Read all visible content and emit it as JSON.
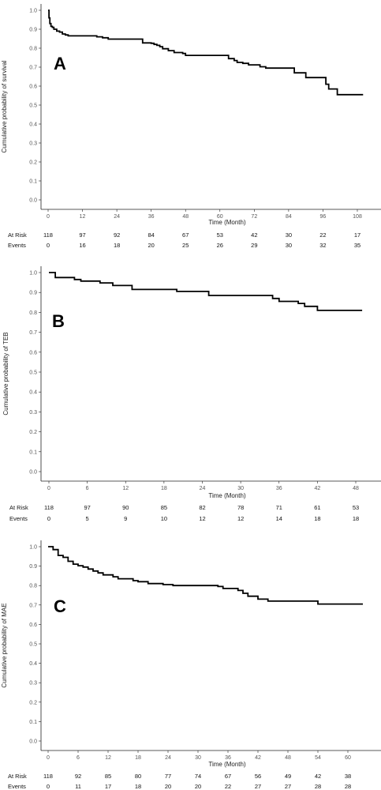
{
  "chart_data": [
    {
      "type": "line",
      "panel_label": "A",
      "xlabel": "Time (Month)",
      "ylabel": "Cumulative probability of survival",
      "xlim": [
        0,
        108
      ],
      "ylim": [
        0,
        1
      ],
      "xticks": [
        0,
        12,
        24,
        36,
        48,
        60,
        72,
        84,
        96,
        108
      ],
      "yticks": [
        "0.0",
        "0.1",
        "0.2",
        "0.3",
        "0.4",
        "0.5",
        "0.6",
        "0.7",
        "0.8",
        "0.9",
        "1.0"
      ],
      "series": [
        {
          "x": [
            0,
            0.3,
            0.6,
            1,
            1.5,
            2,
            3,
            4,
            5,
            6,
            7,
            17,
            19,
            21,
            33,
            36,
            37,
            38,
            39,
            40,
            42,
            44,
            47,
            48,
            50,
            57,
            59,
            61,
            63,
            65,
            66,
            68,
            70,
            72,
            74,
            76,
            78,
            80,
            86,
            90,
            97,
            98,
            99,
            101
          ],
          "y": [
            1.0,
            0.96,
            0.93,
            0.915,
            0.91,
            0.9,
            0.89,
            0.885,
            0.875,
            0.87,
            0.865,
            0.86,
            0.855,
            0.848,
            0.828,
            0.826,
            0.82,
            0.815,
            0.808,
            0.797,
            0.787,
            0.777,
            0.772,
            0.762,
            0.762,
            0.762,
            0.762,
            0.762,
            0.745,
            0.735,
            0.725,
            0.72,
            0.712,
            0.712,
            0.702,
            0.695,
            0.695,
            0.695,
            0.67,
            0.645,
            0.61,
            0.585,
            0.585,
            0.555
          ],
          "x_end": 110
        }
      ],
      "risk_table": {
        "rows": [
          {
            "label": "At Risk",
            "values": [
              "118",
              "97",
              "92",
              "84",
              "67",
              "53",
              "42",
              "30",
              "22",
              "17"
            ]
          },
          {
            "label": "Events",
            "values": [
              "0",
              "16",
              "18",
              "20",
              "25",
              "26",
              "29",
              "30",
              "32",
              "35"
            ]
          }
        ]
      }
    },
    {
      "type": "line",
      "panel_label": "B",
      "xlabel": "Time (Month)",
      "ylabel": "Cumulative probability of TEB",
      "xlim": [
        0,
        48
      ],
      "ylim": [
        0,
        1
      ],
      "xticks": [
        0,
        6,
        12,
        18,
        24,
        30,
        36,
        42,
        48
      ],
      "yticks": [
        "0.0",
        "0.1",
        "0.2",
        "0.3",
        "0.4",
        "0.5",
        "0.6",
        "0.7",
        "0.8",
        "0.9",
        "1.0"
      ],
      "series": [
        {
          "x": [
            0,
            1,
            4,
            5,
            8,
            10,
            13,
            20,
            25,
            35,
            36,
            39,
            40,
            42
          ],
          "y": [
            1.0,
            0.975,
            0.965,
            0.957,
            0.948,
            0.935,
            0.915,
            0.905,
            0.885,
            0.87,
            0.855,
            0.845,
            0.83,
            0.81
          ],
          "x_end": 49
        }
      ],
      "risk_table": {
        "rows": [
          {
            "label": "At Risk",
            "values": [
              "118",
              "97",
              "90",
              "85",
              "82",
              "78",
              "71",
              "61",
              "53"
            ]
          },
          {
            "label": "Events",
            "values": [
              "0",
              "5",
              "9",
              "10",
              "12",
              "12",
              "14",
              "18",
              "18"
            ]
          }
        ]
      }
    },
    {
      "type": "line",
      "panel_label": "C",
      "xlabel": "Time (Month)",
      "ylabel": "Cumulative probability of MAE",
      "xlim": [
        0,
        60
      ],
      "ylim": [
        0,
        1
      ],
      "xticks": [
        0,
        6,
        12,
        18,
        24,
        30,
        36,
        42,
        48,
        54,
        60
      ],
      "yticks": [
        "0.0",
        "0.1",
        "0.2",
        "0.3",
        "0.4",
        "0.5",
        "0.6",
        "0.7",
        "0.8",
        "0.9",
        "1.0"
      ],
      "series": [
        {
          "x": [
            0,
            1,
            2,
            3,
            4,
            5,
            6,
            7,
            8,
            9,
            10,
            11,
            13,
            14,
            17,
            18,
            20,
            23,
            25,
            34,
            35,
            38,
            39,
            40,
            42,
            44,
            54
          ],
          "y": [
            1.0,
            0.985,
            0.955,
            0.945,
            0.925,
            0.91,
            0.902,
            0.895,
            0.885,
            0.875,
            0.865,
            0.855,
            0.845,
            0.835,
            0.825,
            0.82,
            0.81,
            0.805,
            0.8,
            0.795,
            0.785,
            0.775,
            0.76,
            0.745,
            0.73,
            0.72,
            0.705
          ],
          "x_end": 63
        }
      ],
      "risk_table": {
        "rows": [
          {
            "label": "At Risk",
            "values": [
              "118",
              "92",
              "85",
              "80",
              "77",
              "74",
              "67",
              "56",
              "49",
              "42",
              "38"
            ]
          },
          {
            "label": "Events",
            "values": [
              "0",
              "11",
              "17",
              "18",
              "20",
              "20",
              "22",
              "27",
              "27",
              "28",
              "28"
            ]
          }
        ]
      }
    }
  ]
}
